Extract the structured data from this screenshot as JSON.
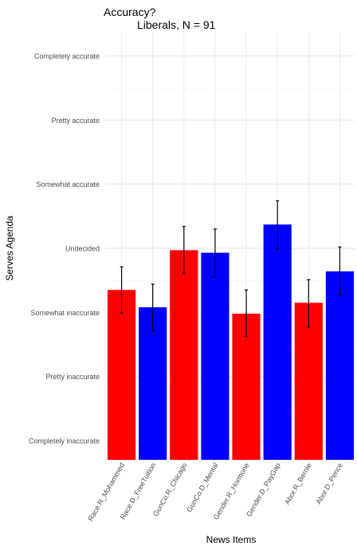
{
  "chart_data": {
    "type": "bar",
    "title": "Accuracy?",
    "subtitle": "Liberals, N = 91",
    "xlabel": "News Items",
    "ylabel": "Serves Agenda",
    "y_tick_labels": [
      "Completely inaccurate",
      "Pretty inaccurate",
      "Somewhat inaccurate",
      "Undecided",
      "Somewhat accurate",
      "Pretty accurate",
      "Completely accurate"
    ],
    "ylim": [
      1,
      7
    ],
    "grid": true,
    "categories": [
      "Race.R_Mohammed",
      "Race.D_FreeTuition",
      "GunCo.R_Chicago",
      "GunCo.D_Mental",
      "Gender.R_Hormone",
      "Gender.D_PayGap",
      "Abor.R_Bernie",
      "Abor.D_Pence"
    ],
    "values": [
      3.35,
      3.08,
      3.97,
      3.93,
      2.98,
      4.37,
      3.15,
      3.64
    ],
    "error_low": [
      2.99,
      2.71,
      3.61,
      3.55,
      2.62,
      3.99,
      2.77,
      3.26
    ],
    "error_high": [
      3.71,
      3.44,
      4.34,
      4.3,
      3.35,
      4.74,
      3.51,
      4.02
    ],
    "colors": [
      "#ff0000",
      "#0000ff",
      "#ff0000",
      "#0000ff",
      "#ff0000",
      "#0000ff",
      "#ff0000",
      "#0000ff"
    ]
  }
}
